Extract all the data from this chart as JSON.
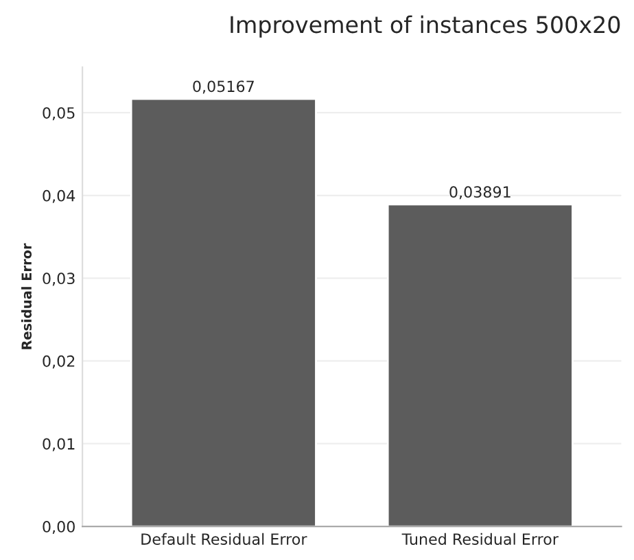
{
  "chart_data": {
    "type": "bar",
    "title": "Improvement of instances 500x20",
    "ylabel": "Residual Error",
    "categories": [
      "Default Residual Error",
      "Tuned Residual Error"
    ],
    "values": [
      0.05167,
      0.03891
    ],
    "color": "#5c5c5c",
    "value_labels": [
      "0,05167",
      "0,03891"
    ],
    "ylim": [
      0,
      0.0555
    ],
    "yticks": [
      {
        "value": 0,
        "label": "0,00"
      },
      {
        "value": 0.01,
        "label": "0,01"
      },
      {
        "value": 0.02,
        "label": "0,02"
      },
      {
        "value": 0.03,
        "label": "0,03"
      },
      {
        "value": 0.04,
        "label": "0,04"
      },
      {
        "value": 0.05,
        "label": "0,05"
      }
    ],
    "grid": "y",
    "legend": false
  }
}
